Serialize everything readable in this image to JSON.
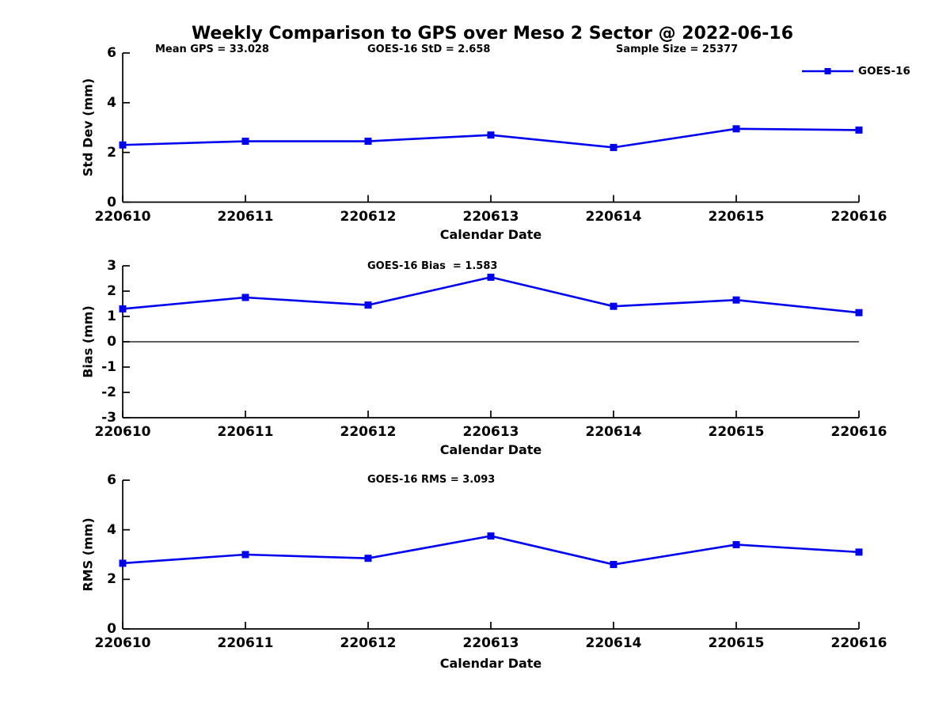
{
  "figure": {
    "title": "Weekly Comparison to GPS over Meso 2 Sector @ 2022-06-16",
    "line_color": "#0000EE",
    "axis_color": "#000000",
    "legend": {
      "label": "GOES-16"
    }
  },
  "chart_data": [
    {
      "type": "line",
      "title": "",
      "xlabel": "Calendar Date",
      "ylabel": "Std Dev (mm)",
      "ylim": [
        0,
        6
      ],
      "yticks": [
        0,
        2,
        4,
        6
      ],
      "x": [
        "220610",
        "220611",
        "220612",
        "220613",
        "220614",
        "220615",
        "220616"
      ],
      "series": [
        {
          "name": "GOES-16",
          "values": [
            2.3,
            2.45,
            2.45,
            2.7,
            2.2,
            2.95,
            2.9
          ]
        }
      ],
      "annotations": [
        "Mean GPS = 33.028",
        "GOES-16 StD = 2.658",
        "Sample Size = 25377"
      ],
      "legend_position": "top-right",
      "grid": false,
      "zero_line": false
    },
    {
      "type": "line",
      "title": "GOES-16 Bias  = 1.583",
      "xlabel": "Calendar Date",
      "ylabel": "Bias (mm)",
      "ylim": [
        -3,
        3
      ],
      "yticks": [
        -3,
        -2,
        -1,
        0,
        1,
        2,
        3
      ],
      "x": [
        "220610",
        "220611",
        "220612",
        "220613",
        "220614",
        "220615",
        "220616"
      ],
      "series": [
        {
          "name": "GOES-16",
          "values": [
            1.3,
            1.75,
            1.45,
            2.55,
            1.4,
            1.65,
            1.15
          ]
        }
      ],
      "annotations": [],
      "grid": false,
      "zero_line": true
    },
    {
      "type": "line",
      "title": "GOES-16 RMS = 3.093",
      "xlabel": "Calendar Date",
      "ylabel": "RMS (mm)",
      "ylim": [
        0,
        6
      ],
      "yticks": [
        0,
        2,
        4,
        6
      ],
      "x": [
        "220610",
        "220611",
        "220612",
        "220613",
        "220614",
        "220615",
        "220616"
      ],
      "series": [
        {
          "name": "GOES-16",
          "values": [
            2.65,
            3.0,
            2.85,
            3.75,
            2.6,
            3.4,
            3.1
          ]
        }
      ],
      "annotations": [],
      "grid": false,
      "zero_line": false
    }
  ]
}
